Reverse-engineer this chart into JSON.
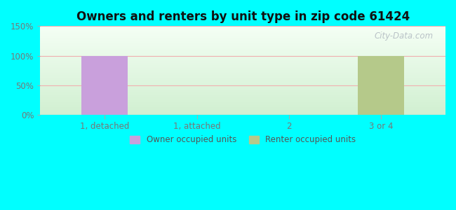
{
  "title": "Owners and renters by unit type in zip code 61424",
  "categories": [
    "1, detached",
    "1, attached",
    "2",
    "3 or 4"
  ],
  "owner_values": [
    100,
    0,
    0,
    0
  ],
  "renter_values": [
    0,
    0,
    0,
    100
  ],
  "owner_color": "#c9a0dc",
  "renter_color": "#b5c98a",
  "ylim": [
    0,
    150
  ],
  "yticks": [
    0,
    50,
    100,
    150
  ],
  "ytick_labels": [
    "0%",
    "50%",
    "100%",
    "150%"
  ],
  "bg_top": "#f0faf0",
  "bg_bottom": "#d8f0d8",
  "outer_background": "#00ffff",
  "bar_width": 0.5,
  "legend_owner": "Owner occupied units",
  "legend_renter": "Renter occupied units",
  "watermark": "City-Data.com",
  "grid_color": "#f0b0b0",
  "tick_color": "#777777",
  "title_color": "#111111"
}
